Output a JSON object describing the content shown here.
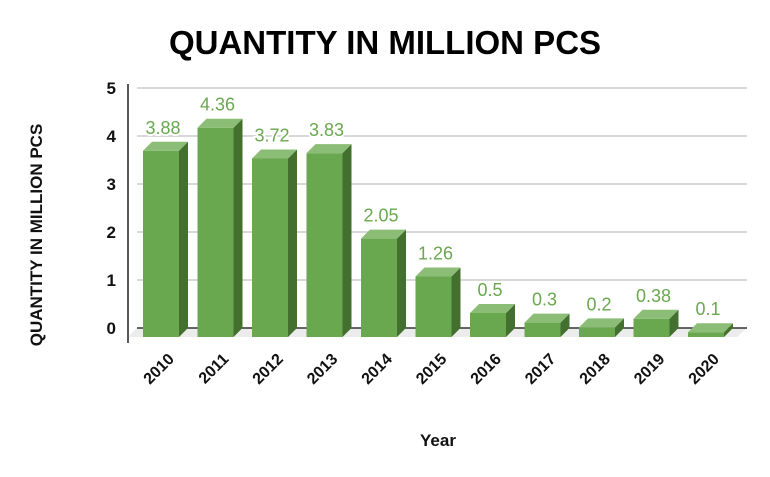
{
  "chart_data": {
    "type": "bar",
    "title": "QUANTITY IN MILLION PCS",
    "xlabel": "Year",
    "ylabel": "QUANTITY IN MILLION PCS",
    "categories": [
      "2010",
      "2011",
      "2012",
      "2013",
      "2014",
      "2015",
      "2016",
      "2017",
      "2018",
      "2019",
      "2020"
    ],
    "values": [
      3.88,
      4.36,
      3.72,
      3.83,
      2.05,
      1.26,
      0.5,
      0.3,
      0.2,
      0.38,
      0.1
    ],
    "data_labels": [
      "3.88",
      "4.36",
      "3.72",
      "3.83",
      "2.05",
      "1.26",
      "0.5",
      "0.3",
      "0.2",
      "0.38",
      "0.1"
    ],
    "ylim": [
      0,
      5
    ],
    "yticks": [
      "0",
      "1",
      "2",
      "3",
      "4",
      "5"
    ],
    "grid": true,
    "style": "3d-column",
    "colors": {
      "front": "#6aa84f",
      "side": "#43702f",
      "top": "#8cbd76",
      "label": "#6aa84f"
    }
  }
}
